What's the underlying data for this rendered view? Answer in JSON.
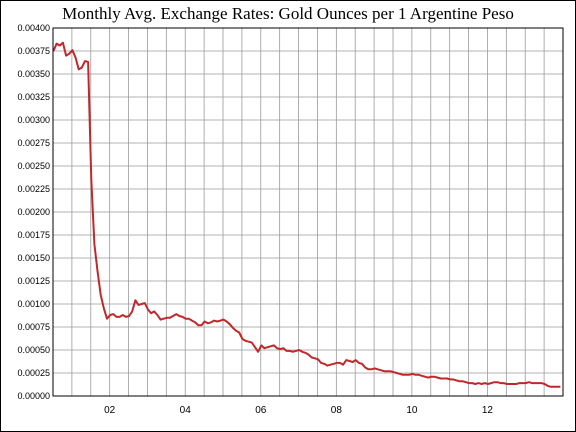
{
  "chart_data": {
    "type": "line",
    "title": "Monthly Avg. Exchange Rates: Gold Ounces per 1 Argentine Peso",
    "xlabel": "",
    "ylabel": "",
    "ylim": [
      0,
      0.004
    ],
    "y_ticks": [
      "0.00000",
      "0.00025",
      "0.00050",
      "0.00075",
      "0.00100",
      "0.00125",
      "0.00150",
      "0.00175",
      "0.00200",
      "0.00225",
      "0.00250",
      "0.00275",
      "0.00300",
      "0.00325",
      "0.00350",
      "0.00375",
      "0.00400"
    ],
    "x_range": [
      "2000-07",
      "2014-01"
    ],
    "x_ticks": [
      {
        "label": "02",
        "value": "2002-01"
      },
      {
        "label": "04",
        "value": "2004-01"
      },
      {
        "label": "06",
        "value": "2006-01"
      },
      {
        "label": "08",
        "value": "2008-01"
      },
      {
        "label": "10",
        "value": "2010-01"
      },
      {
        "label": "12",
        "value": "2012-01"
      }
    ],
    "grid": true,
    "line_color": "#c0292b",
    "series": [
      {
        "x": [
          "2000-07",
          "2000-08",
          "2000-09",
          "2000-10",
          "2000-11",
          "2000-12",
          "2001-01",
          "2001-02",
          "2001-03",
          "2001-04",
          "2001-05",
          "2001-06",
          "2001-07",
          "2001-08",
          "2001-09",
          "2001-10",
          "2001-11",
          "2001-12",
          "2002-01",
          "2002-02",
          "2002-03",
          "2002-04",
          "2002-05",
          "2002-06",
          "2002-07",
          "2002-08",
          "2002-09",
          "2002-10",
          "2002-11",
          "2002-12",
          "2003-01",
          "2003-02",
          "2003-03",
          "2003-04",
          "2003-05",
          "2003-06",
          "2003-07",
          "2003-08",
          "2003-09",
          "2003-10",
          "2003-11",
          "2003-12",
          "2004-01",
          "2004-02",
          "2004-03",
          "2004-04",
          "2004-05",
          "2004-06",
          "2004-07",
          "2004-08",
          "2004-09",
          "2004-10",
          "2004-11",
          "2004-12",
          "2005-01",
          "2005-02",
          "2005-03",
          "2005-04",
          "2005-05",
          "2005-06",
          "2005-07",
          "2005-08",
          "2005-09",
          "2005-10",
          "2005-11",
          "2005-12",
          "2006-01",
          "2006-02",
          "2006-03",
          "2006-04",
          "2006-05",
          "2006-06",
          "2006-07",
          "2006-08",
          "2006-09",
          "2006-10",
          "2006-11",
          "2006-12",
          "2007-01",
          "2007-02",
          "2007-03",
          "2007-04",
          "2007-05",
          "2007-06",
          "2007-07",
          "2007-08",
          "2007-09",
          "2007-10",
          "2007-11",
          "2007-12",
          "2008-01",
          "2008-02",
          "2008-03",
          "2008-04",
          "2008-05",
          "2008-06",
          "2008-07",
          "2008-08",
          "2008-09",
          "2008-10",
          "2008-11",
          "2008-12",
          "2009-01",
          "2009-02",
          "2009-03",
          "2009-04",
          "2009-05",
          "2009-06",
          "2009-07",
          "2009-08",
          "2009-09",
          "2009-10",
          "2009-11",
          "2009-12",
          "2010-01",
          "2010-02",
          "2010-03",
          "2010-04",
          "2010-05",
          "2010-06",
          "2010-07",
          "2010-08",
          "2010-09",
          "2010-10",
          "2010-11",
          "2010-12",
          "2011-01",
          "2011-02",
          "2011-03",
          "2011-04",
          "2011-05",
          "2011-06",
          "2011-07",
          "2011-08",
          "2011-09",
          "2011-10",
          "2011-11",
          "2011-12",
          "2012-01",
          "2012-02",
          "2012-03",
          "2012-04",
          "2012-05",
          "2012-06",
          "2012-07",
          "2012-08",
          "2012-09",
          "2012-10",
          "2012-11",
          "2012-12",
          "2013-01",
          "2013-02",
          "2013-03",
          "2013-04",
          "2013-05",
          "2013-06",
          "2013-07",
          "2013-08",
          "2013-09",
          "2013-10",
          "2013-11",
          "2013-12"
        ],
        "values": [
          0.00375,
          0.00383,
          0.00381,
          0.00384,
          0.0037,
          0.00372,
          0.00376,
          0.00368,
          0.00355,
          0.00357,
          0.00364,
          0.00363,
          0.00235,
          0.00165,
          0.00135,
          0.0011,
          0.00095,
          0.00084,
          0.00088,
          0.00089,
          0.00086,
          0.00086,
          0.00088,
          0.00086,
          0.00087,
          0.00092,
          0.00104,
          0.00099,
          0.001,
          0.00101,
          0.00094,
          0.0009,
          0.00092,
          0.00088,
          0.00083,
          0.00084,
          0.00085,
          0.00085,
          0.00087,
          0.00089,
          0.00087,
          0.00086,
          0.00084,
          0.00084,
          0.00082,
          0.0008,
          0.00077,
          0.00077,
          0.00081,
          0.00079,
          0.0008,
          0.00082,
          0.00081,
          0.00082,
          0.00083,
          0.00081,
          0.00078,
          0.00074,
          0.00071,
          0.00069,
          0.00062,
          0.0006,
          0.00059,
          0.00058,
          0.00053,
          0.00048,
          0.00055,
          0.00052,
          0.00053,
          0.00054,
          0.00055,
          0.00052,
          0.00051,
          0.00052,
          0.00049,
          0.00049,
          0.00048,
          0.00049,
          0.0005,
          0.00048,
          0.00047,
          0.00045,
          0.00042,
          0.00041,
          0.0004,
          0.00036,
          0.00035,
          0.00033,
          0.00034,
          0.00035,
          0.00036,
          0.00036,
          0.00034,
          0.00039,
          0.00038,
          0.00037,
          0.00039,
          0.00036,
          0.00035,
          0.00031,
          0.00029,
          0.00029,
          0.0003,
          0.00029,
          0.00028,
          0.00027,
          0.00027,
          0.00027,
          0.00026,
          0.00025,
          0.00024,
          0.00023,
          0.00023,
          0.00023,
          0.00024,
          0.00023,
          0.00023,
          0.00022,
          0.00021,
          0.0002,
          0.00021,
          0.00021,
          0.0002,
          0.00019,
          0.00019,
          0.00019,
          0.00018,
          0.00018,
          0.00017,
          0.00016,
          0.00016,
          0.00015,
          0.00014,
          0.00014,
          0.00013,
          0.00014,
          0.00013,
          0.00014,
          0.00013,
          0.00014,
          0.00015,
          0.00015,
          0.00014,
          0.00014,
          0.00013,
          0.00013,
          0.00013,
          0.00013,
          0.00014,
          0.00014,
          0.00014,
          0.00015,
          0.00014,
          0.00014,
          0.00014,
          0.00014,
          0.00013,
          0.00011,
          0.0001,
          0.0001,
          0.0001,
          0.0001
        ]
      }
    ]
  }
}
